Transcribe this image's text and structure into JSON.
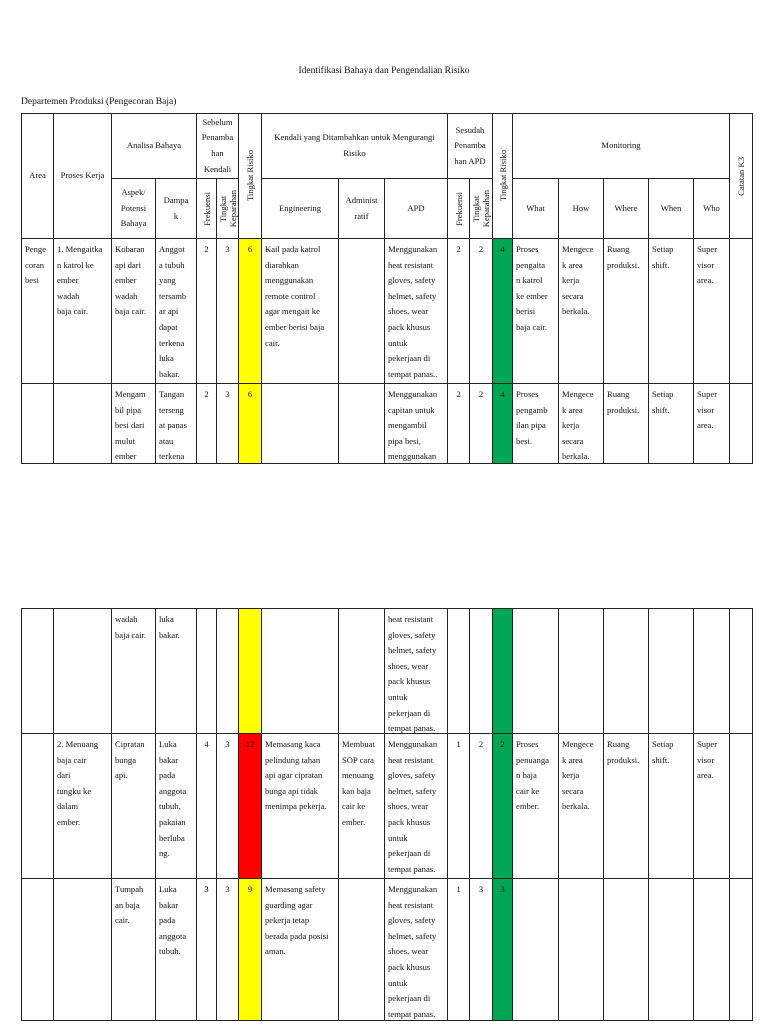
{
  "header": {
    "title": "Identifikasi Bahaya dan Pengendalian Risiko",
    "department": "Departemen Produksi (Pengecoran Baja)"
  },
  "table_header": {
    "area": "Area",
    "proses_kerja": "Proses Kerja",
    "analisa_bahaya": "Analisa Bahaya",
    "sebelum": "Sebelum\nPenamba\nhan\nKendali",
    "tingkat_risiko_1": "Tingkat Risiko",
    "kendali": "Kendali yang Ditambahkan untuk Mengurangi\nRisiko",
    "sesudah": "Sesudah\nPenamba\nhan APD",
    "tingkat_risiko_2": "Tingkat Risiko",
    "monitoring": "Monitoring",
    "catatan": "Catatan K3",
    "aspek": "Aspek/\nPotensi\nBahaya",
    "dampak": "Dampa\nk",
    "frekuensi_1": "Frekuensi",
    "keparahan_1": "Tingkat\nKeparahan",
    "engineering": "Engineering",
    "administratif": "Administ\nratif",
    "apd": "APD",
    "frekuensi_2": "Frekuensi",
    "keparahan_2": "Tingkat\nKeparahan",
    "what": "What",
    "how": "How",
    "where": "Where",
    "when": "When",
    "who": "Who"
  },
  "pages": [
    {
      "rows": [
        {
          "risk_before_color": "#ffff00",
          "risk_after_color": "#00a651",
          "cells": [
            "Penge\ncoran\nbesi",
            "1. Mengaitka\nn katrol ke\nember\nwadah\nbaja cair.",
            "Kobaran\napi dari\nember\nwadah\nbaja cair.",
            "Anggot\na tubuh\nyang\ntersamb\nar api\ndapat\nterkena\nluka\nbakar.",
            2,
            3,
            6,
            "Kail pada katrol\ndiarahkan\nmenggunakan\nremote control\nagar mengait ke\nember berisi baja\ncair.",
            null,
            "Menggunakan\nheat resistant\ngloves, safety\nhelmet, safety\nshoes, wear\npack khusus\nuntuk\npekerjaan di\ntempat panas..",
            2,
            2,
            4,
            "Proses\npengaita\nn katrol\nke ember\nberisi\nbaja cair.",
            "Mengece\nk area\nkerja\nsecara\nberkala.",
            "Ruang\nproduksi.",
            "Setiap\nshift.",
            "Super\nvisor\narea.",
            null
          ]
        },
        {
          "risk_before_color": "#ffff00",
          "risk_after_color": "#00a651",
          "cells": [
            null,
            null,
            "Mengam\nbil pipa\nbesi dari\nmulut\nember",
            "Tangan\nterseng\nat panas\natau\nterkena",
            2,
            3,
            6,
            null,
            null,
            "Menggunakan\ncapitan untuk\nmengambil\npipa besi,\nmenggunakan",
            2,
            2,
            4,
            "Proses\npengamb\nilan pipa\nbesi.",
            "Mengece\nk area\nkerja\nsecara\nberkala.",
            "Ruang\nproduksi.",
            "Setiap\nshift.",
            "Super\nvisor\narea.",
            null
          ]
        }
      ]
    },
    {
      "rows": [
        {
          "risk_before_color": "#ffff00",
          "risk_after_color": "#00a651",
          "cells": [
            null,
            null,
            "wadah\nbaja cair.",
            "luka\nbakar.",
            null,
            null,
            null,
            null,
            null,
            "heat resistant\ngloves, safety\nhelmet, safety\nshoes, wear\npack khusus\nuntuk\npekerjaan di\ntempat panas.",
            null,
            null,
            null,
            null,
            null,
            null,
            null,
            null,
            null
          ]
        },
        {
          "risk_before_color": "#ff0000",
          "risk_after_color": "#00a651",
          "cells": [
            null,
            "2. Menuang\nbaja cair\ndari\ntungku ke\ndalam\nember.",
            "Cipratan\nbunga\napi.",
            "Luka\nbakar\npada\nanggota\ntubuh,\npakaian\nberluba\nng.",
            4,
            3,
            12,
            "Memasang kaca\npelindung tahan\napi agar cipratan\nbunga api tidak\nmenimpa pekerja.",
            "Membuat\nSOP cara\nmenuang\nkan baja\ncair ke\nember.",
            "Menggunakan\nheat resistant\ngloves, safety\nhelmet, safety\nshoes, wear\npack khusus\nuntuk\npekerjaan di\ntempat panas.",
            1,
            2,
            2,
            "Proses\npenuanga\nn baja\ncair ke\nember.",
            "Mengece\nk area\nkerja\nsecara\nberkala.",
            "Ruang\nproduksi.",
            "Setiap\nshift.",
            "Super\nvisor\narea.",
            null
          ]
        },
        {
          "risk_before_color": "#ffff00",
          "risk_after_color": "#00a651",
          "cells": [
            null,
            null,
            "Tumpah\nan baja\ncair.",
            "Luka\nbakar\npada\nanggota\ntubuh.",
            3,
            3,
            9,
            "Memasang safety\nguarding agar\npekerja tetap\nberada pada posisi\naman.",
            null,
            "Menggunakan\nheat resistant\ngloves, safety\nhelmet, safety\nshoes, wear\npack khusus\nuntuk\npekerjaan di\ntempat panas.",
            1,
            3,
            3,
            null,
            null,
            null,
            null,
            null,
            null
          ]
        }
      ]
    }
  ]
}
